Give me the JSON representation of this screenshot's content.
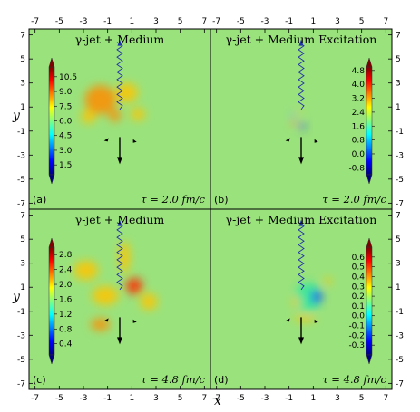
{
  "chart_data": [
    {
      "type": "heatmap",
      "label": "(a)",
      "title": "γ-jet + Medium",
      "tau_label": "τ = 2.0 fm/c",
      "colorbar_ticks": [
        "10.5",
        "9.0",
        "7.5",
        "6.0",
        "4.5",
        "3.0",
        "1.5"
      ],
      "colorbar_range": [
        0.5,
        11.5
      ],
      "blobs": [
        {
          "x": -1.6,
          "y": 1.6,
          "sx": 2.6,
          "sy": 2.4,
          "v": 0.65
        },
        {
          "x": 0.6,
          "y": 2.2,
          "sx": 1.8,
          "sy": 1.6,
          "v": 0.45
        },
        {
          "x": -2.6,
          "y": 0.2,
          "sx": 1.2,
          "sy": 1.1,
          "v": 0.55
        },
        {
          "x": -0.4,
          "y": 0.3,
          "sx": 1.0,
          "sy": 1.0,
          "v": 0.6
        },
        {
          "x": 1.5,
          "y": 0.4,
          "sx": 1.2,
          "sy": 1.0,
          "v": 0.35
        }
      ]
    },
    {
      "type": "heatmap",
      "label": "(b)",
      "title": "γ-jet + Medium Excitation",
      "tau_label": "τ = 2.0 fm/c",
      "colorbar_ticks": [
        "4.8",
        "4.0",
        "3.2",
        "2.4",
        "1.6",
        "0.8",
        "0.0",
        "-0.8"
      ],
      "colorbar_range": [
        -1.2,
        5.0
      ],
      "blobs": [
        {
          "x": -0.6,
          "y": -0.3,
          "sx": 0.5,
          "sy": 0.4,
          "v": 0.75
        },
        {
          "x": 0.1,
          "y": -0.6,
          "sx": 0.5,
          "sy": 0.45,
          "v": -0.8
        },
        {
          "x": -0.7,
          "y": 0.3,
          "sx": 0.4,
          "sy": 0.35,
          "v": -0.5
        },
        {
          "x": -0.2,
          "y": 0.6,
          "sx": 0.45,
          "sy": 0.3,
          "v": 0.35
        }
      ]
    },
    {
      "type": "heatmap",
      "label": "(c)",
      "title": "γ-jet + Medium",
      "tau_label": "τ = 4.8 fm/c",
      "colorbar_ticks": [
        "2.8",
        "2.4",
        "2.0",
        "1.6",
        "1.2",
        "0.8",
        "0.4"
      ],
      "colorbar_range": [
        0.1,
        3.0
      ],
      "blobs": [
        {
          "x": 1.2,
          "y": 1.1,
          "sx": 1.4,
          "sy": 1.4,
          "v": 0.95
        },
        {
          "x": 0.4,
          "y": 3.5,
          "sx": 0.9,
          "sy": 2.6,
          "v": 0.55
        },
        {
          "x": -2.8,
          "y": 2.4,
          "sx": 2.0,
          "sy": 1.6,
          "v": 0.4
        },
        {
          "x": -1.6,
          "y": -2.1,
          "sx": 1.6,
          "sy": 1.0,
          "v": 0.7
        },
        {
          "x": 2.4,
          "y": -0.2,
          "sx": 1.4,
          "sy": 1.4,
          "v": 0.45
        },
        {
          "x": -1.2,
          "y": 0.3,
          "sx": 2.2,
          "sy": 1.6,
          "v": 0.35
        }
      ]
    },
    {
      "type": "heatmap",
      "label": "(d)",
      "title": "γ-jet + Medium Excitation",
      "tau_label": "τ = 4.8 fm/c",
      "colorbar_ticks": [
        "0.6",
        "0.5",
        "0.4",
        "0.3",
        "0.2",
        "0.1",
        "0.0",
        "-0.1",
        "-0.2",
        "-0.3"
      ],
      "colorbar_range": [
        -0.4,
        0.7
      ],
      "blobs": [
        {
          "x": 0.6,
          "y": 0.2,
          "sx": 2.2,
          "sy": 2.4,
          "v": -0.4
        },
        {
          "x": 1.3,
          "y": 0.2,
          "sx": 0.8,
          "sy": 1.1,
          "v": -0.9
        },
        {
          "x": -0.4,
          "y": -0.2,
          "sx": 0.6,
          "sy": 0.8,
          "v": 0.5
        },
        {
          "x": 0.3,
          "y": -1.6,
          "sx": 1.8,
          "sy": 0.5,
          "v": 0.55
        },
        {
          "x": 2.2,
          "y": 1.5,
          "sx": 0.6,
          "sy": 0.6,
          "v": 0.4
        }
      ]
    }
  ],
  "axes": {
    "x_ticks": [
      "-7",
      "-5",
      "-3",
      "-1",
      "1",
      "3",
      "5",
      "7"
    ],
    "y_ticks": [
      "7",
      "5",
      "3",
      "1",
      "-1",
      "-3",
      "-5",
      "-7"
    ],
    "xlabel": "x",
    "ylabel": "y",
    "range": [
      -7.5,
      7.5
    ]
  }
}
